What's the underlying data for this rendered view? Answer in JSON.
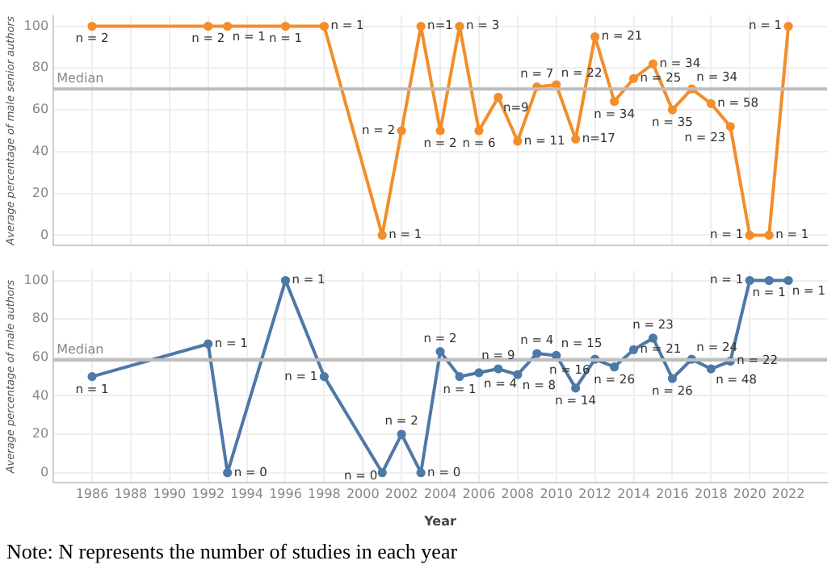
{
  "chart_data": [
    {
      "type": "line",
      "ylabel": "Average percentage of male senior authors",
      "x": [
        1986,
        1992,
        1993,
        1996,
        1998,
        2001,
        2002,
        2003,
        2004,
        2005,
        2006,
        2007,
        2008,
        2009,
        2010,
        2011,
        2012,
        2013,
        2014,
        2015,
        2016,
        2017,
        2018,
        2019,
        2020,
        2021,
        2022
      ],
      "series": [
        {
          "color": "#f28e2b",
          "values": [
            100,
            100,
            100,
            100,
            100,
            0,
            50,
            100,
            50,
            100,
            50,
            66,
            45,
            71,
            72,
            46,
            95,
            64,
            75,
            82,
            60,
            70,
            63,
            52,
            0,
            0,
            100
          ]
        }
      ],
      "xlim": [
        1984,
        2024
      ],
      "xticks": [
        1986,
        1988,
        1990,
        1992,
        1994,
        1996,
        1998,
        2000,
        2002,
        2004,
        2006,
        2008,
        2010,
        2012,
        2014,
        2016,
        2018,
        2020,
        2022
      ],
      "ylim": [
        -5,
        105
      ],
      "yticks": [
        0,
        20,
        40,
        60,
        80,
        100
      ],
      "tick_labels": "y",
      "grid": true,
      "marker": "circle",
      "line_style": "solid",
      "ref_lines": [
        {
          "axis": "y",
          "value": 70,
          "label": "Median"
        }
      ],
      "annotations": [
        {
          "text": "n = 2",
          "x": 1986,
          "y": 100
        },
        {
          "text": "n = 2",
          "x": 1992,
          "y": 100
        },
        {
          "text": "n = 1",
          "x": 1993,
          "y": 100
        },
        {
          "text": "n = 1",
          "x": 1996,
          "y": 100
        },
        {
          "text": "n = 1",
          "x": 1998,
          "y": 100
        },
        {
          "text": "n = 1",
          "x": 2001,
          "y": 0
        },
        {
          "text": "n = 2",
          "x": 2002,
          "y": 50
        },
        {
          "text": "n=1",
          "x": 2003,
          "y": 100
        },
        {
          "text": "n = 2",
          "x": 2004,
          "y": 50
        },
        {
          "text": "n = 3",
          "x": 2005,
          "y": 100
        },
        {
          "text": "n = 6",
          "x": 2006,
          "y": 50
        },
        {
          "text": "n=9",
          "x": 2007,
          "y": 66
        },
        {
          "text": "n = 11",
          "x": 2008,
          "y": 45
        },
        {
          "text": "n = 7",
          "x": 2009,
          "y": 71
        },
        {
          "text": "n = 22",
          "x": 2010,
          "y": 72
        },
        {
          "text": "n=17",
          "x": 2011,
          "y": 46
        },
        {
          "text": "n = 21",
          "x": 2012,
          "y": 95
        },
        {
          "text": "n = 34",
          "x": 2013,
          "y": 64
        },
        {
          "text": "n = 25",
          "x": 2014,
          "y": 75
        },
        {
          "text": "n = 34",
          "x": 2015,
          "y": 82
        },
        {
          "text": "n = 35",
          "x": 2016,
          "y": 60
        },
        {
          "text": "n = 34",
          "x": 2017,
          "y": 70
        },
        {
          "text": "n = 58",
          "x": 2018,
          "y": 63
        },
        {
          "text": "n = 23",
          "x": 2019,
          "y": 52
        },
        {
          "text": "n = 1",
          "x": 2020,
          "y": 0
        },
        {
          "text": "n = 1",
          "x": 2021,
          "y": 0
        },
        {
          "text": "n = 1",
          "x": 2022,
          "y": 100
        }
      ]
    },
    {
      "type": "line",
      "xlabel": "Year",
      "ylabel": "Average percentage of male authors",
      "x": [
        1986,
        1992,
        1993,
        1996,
        1998,
        2001,
        2002,
        2003,
        2004,
        2005,
        2006,
        2007,
        2008,
        2009,
        2010,
        2011,
        2012,
        2013,
        2014,
        2015,
        2016,
        2017,
        2018,
        2019,
        2020,
        2021,
        2022
      ],
      "series": [
        {
          "color": "#4e79a7",
          "values": [
            50,
            67,
            0,
            100,
            50,
            0,
            20,
            0,
            63,
            50,
            52,
            54,
            51,
            62,
            61,
            44,
            59,
            55,
            64,
            70,
            49,
            59,
            54,
            58,
            100,
            100,
            100
          ]
        }
      ],
      "xlim": [
        1984,
        2024
      ],
      "xticks": [
        1986,
        1988,
        1990,
        1992,
        1994,
        1996,
        1998,
        2000,
        2002,
        2004,
        2006,
        2008,
        2010,
        2012,
        2014,
        2016,
        2018,
        2020,
        2022
      ],
      "ylim": [
        -5,
        105
      ],
      "yticks": [
        0,
        20,
        40,
        60,
        80,
        100
      ],
      "grid": true,
      "marker": "circle",
      "line_style": "solid",
      "ref_lines": [
        {
          "axis": "y",
          "value": 58.7,
          "label": "Median"
        }
      ],
      "annotations": [
        {
          "text": "n = 1",
          "x": 1986,
          "y": 50
        },
        {
          "text": "n = 1",
          "x": 1992,
          "y": 67
        },
        {
          "text": "n = 0",
          "x": 1993,
          "y": 0
        },
        {
          "text": "n = 1",
          "x": 1996,
          "y": 100
        },
        {
          "text": "n = 1",
          "x": 1998,
          "y": 50
        },
        {
          "text": "n = 0",
          "x": 2001,
          "y": 0
        },
        {
          "text": "n = 2",
          "x": 2002,
          "y": 20
        },
        {
          "text": "n = 0",
          "x": 2003,
          "y": 0
        },
        {
          "text": "n = 2",
          "x": 2004,
          "y": 63
        },
        {
          "text": "n = 1",
          "x": 2005,
          "y": 50
        },
        {
          "text": "n = 4",
          "x": 2006,
          "y": 52
        },
        {
          "text": "n = 9",
          "x": 2007,
          "y": 54
        },
        {
          "text": "n = 8",
          "x": 2008,
          "y": 51
        },
        {
          "text": "n = 4",
          "x": 2009,
          "y": 62
        },
        {
          "text": "n = 15",
          "x": 2010,
          "y": 61
        },
        {
          "text": "n = 14",
          "x": 2011,
          "y": 44
        },
        {
          "text": "n = 16",
          "x": 2012,
          "y": 59
        },
        {
          "text": "n = 26",
          "x": 2013,
          "y": 55
        },
        {
          "text": "n = 21",
          "x": 2014,
          "y": 64
        },
        {
          "text": "n = 23",
          "x": 2015,
          "y": 70
        },
        {
          "text": "n = 26",
          "x": 2016,
          "y": 49
        },
        {
          "text": "n = 24",
          "x": 2017,
          "y": 59
        },
        {
          "text": "n = 48",
          "x": 2018,
          "y": 54
        },
        {
          "text": "n = 22",
          "x": 2019,
          "y": 58
        },
        {
          "text": "n = 1",
          "x": 2020,
          "y": 100
        },
        {
          "text": "n = 1",
          "x": 2021,
          "y": 100
        },
        {
          "text": "n = 1",
          "x": 2022,
          "y": 100
        },
        "Note: N represents the number of studies in each year"
      ]
    }
  ]
}
